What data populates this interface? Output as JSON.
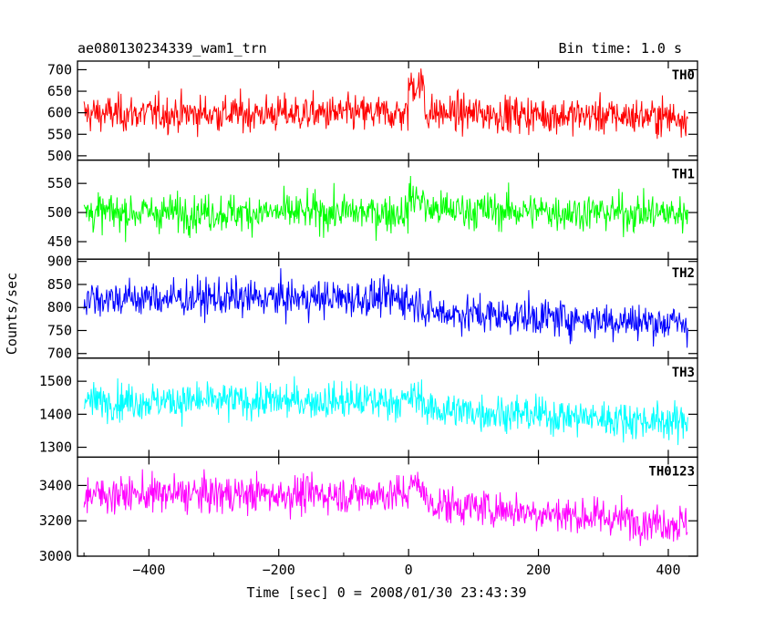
{
  "header": {
    "title": "ae080130234339_wam1_trn",
    "bin_time": "Bin time: 1.0 s"
  },
  "chart_data": {
    "type": "line",
    "title": "ae080130234339_wam1_trn",
    "subtitle": "Bin time: 1.0 s",
    "xlabel": "Time [sec] 0 = 2008/01/30 23:43:39",
    "ylabel": "Counts/sec",
    "xlim": [
      -510,
      445
    ],
    "x_range": [
      -500,
      430
    ],
    "x_step": 1.0,
    "xticks": [
      -400,
      -200,
      0,
      200,
      400
    ],
    "xtick_labels": [
      "−400",
      "−200",
      "0",
      "200",
      "400"
    ],
    "grid": false,
    "panels": [
      {
        "name": "TH0",
        "color": "#ff0000",
        "ylim": [
          490,
          720
        ],
        "yticks": [
          500,
          550,
          600,
          650,
          700
        ],
        "mean_before_0": 598,
        "peak_near_0": 665,
        "mean_after_0": 600,
        "mean_end": 590,
        "range_min": 494,
        "range_max": 718
      },
      {
        "name": "TH1",
        "color": "#00ff00",
        "ylim": [
          420,
          590
        ],
        "yticks": [
          450,
          500,
          550
        ],
        "mean_before_0": 500,
        "peak_near_0": 525,
        "mean_after_0": 505,
        "mean_end": 498,
        "range_min": 420,
        "range_max": 590
      },
      {
        "name": "TH2",
        "color": "#0000ff",
        "ylim": [
          690,
          905
        ],
        "yticks": [
          700,
          750,
          800,
          850,
          900
        ],
        "mean_before_0": 820,
        "peak_near_0": 810,
        "mean_after_0": 790,
        "mean_end": 765,
        "range_min": 690,
        "range_max": 905
      },
      {
        "name": "TH3",
        "color": "#00ffff",
        "ylim": [
          1270,
          1570
        ],
        "yticks": [
          1300,
          1400,
          1500
        ],
        "mean_before_0": 1440,
        "peak_near_0": 1450,
        "mean_after_0": 1415,
        "mean_end": 1375,
        "range_min": 1280,
        "range_max": 1570
      },
      {
        "name": "TH0123",
        "color": "#ff00ff",
        "ylim": [
          3000,
          3560
        ],
        "yticks": [
          3000,
          3200,
          3400
        ],
        "mean_before_0": 3350,
        "peak_near_0": 3400,
        "mean_after_0": 3300,
        "mean_end": 3180,
        "range_min": 3000,
        "range_max": 3560
      }
    ]
  }
}
